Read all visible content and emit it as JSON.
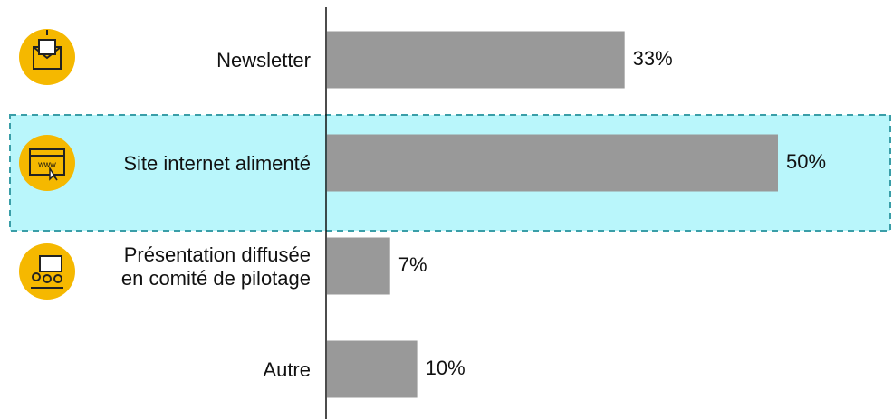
{
  "chart_data": {
    "type": "bar",
    "orientation": "horizontal",
    "categories": [
      "Newsletter",
      "Site internet alimenté",
      "Présentation diffusée\nen comité de pilotage",
      "Autre"
    ],
    "values": [
      33,
      50,
      7,
      10
    ],
    "value_labels": [
      "33%",
      "50%",
      "7%",
      "10%"
    ],
    "color": "#999999"
  }
}
